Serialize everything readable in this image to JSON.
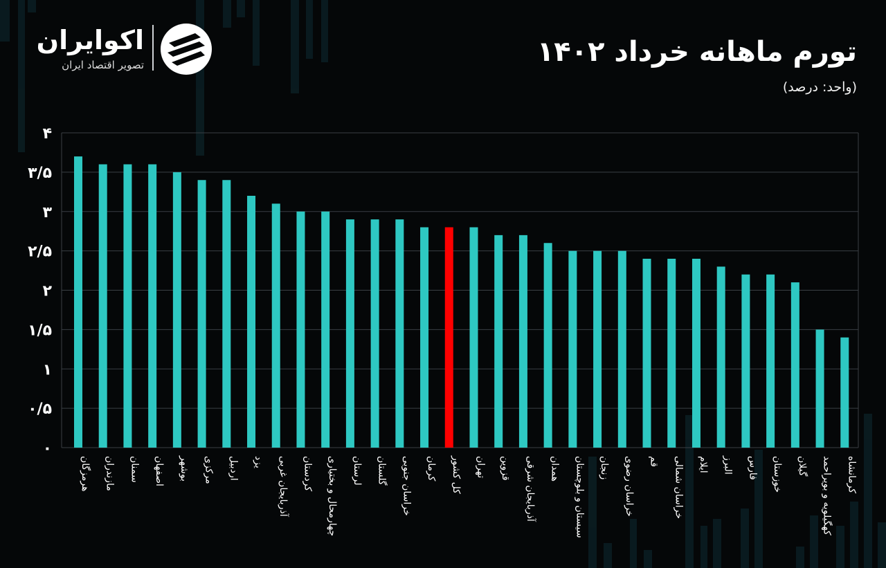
{
  "brand": {
    "name": "اکوایران",
    "tagline": "تصویر اقتصاد ایران"
  },
  "header": {
    "title": "تورم ماهانه خرداد ۱۴۰۲",
    "unit": "(واحد: درصد)"
  },
  "colors": {
    "bar": "#2ec8c2",
    "highlight": "#ff0000",
    "grid": "#3a3f44",
    "text": "#ffffff"
  },
  "chart_data": {
    "type": "bar",
    "title": "تورم ماهانه خرداد ۱۴۰۲",
    "ylabel": "",
    "xlabel": "",
    "ylim": [
      0,
      4
    ],
    "yticks": [
      {
        "value": 0,
        "label": "۰"
      },
      {
        "value": 0.5,
        "label": "۰/۵"
      },
      {
        "value": 1,
        "label": "۱"
      },
      {
        "value": 1.5,
        "label": "۱/۵"
      },
      {
        "value": 2,
        "label": "۲"
      },
      {
        "value": 2.5,
        "label": "۲/۵"
      },
      {
        "value": 3,
        "label": "۳"
      },
      {
        "value": 3.5,
        "label": "۳/۵"
      },
      {
        "value": 4,
        "label": "۴"
      }
    ],
    "grid": true,
    "highlight_category": "کل کشور",
    "categories": [
      "هرمزگان",
      "مازندران",
      "سمنان",
      "اصفهان",
      "بوشهر",
      "مرکزی",
      "اردبیل",
      "یزد",
      "آذربایجان غربی",
      "کردستان",
      "چهارمحال و بختیاری",
      "لرستان",
      "گلستان",
      "خراسان جنوبی",
      "کرمان",
      "کل کشور",
      "تهران",
      "قزوین",
      "آذربایجان شرقی",
      "همدان",
      "سیستان و بلوچستان",
      "زنجان",
      "خراسان رضوی",
      "قم",
      "خراسان شمالی",
      "ایلام",
      "البرز",
      "فارس",
      "خوزستان",
      "گیلان",
      "کهگیلویه و بویراحمد",
      "کرمانشاه"
    ],
    "values": [
      3.7,
      3.6,
      3.6,
      3.6,
      3.5,
      3.4,
      3.4,
      3.2,
      3.1,
      3.0,
      3.0,
      2.9,
      2.9,
      2.9,
      2.8,
      2.8,
      2.8,
      2.7,
      2.7,
      2.6,
      2.5,
      2.5,
      2.5,
      2.4,
      2.4,
      2.4,
      2.3,
      2.2,
      2.2,
      2.1,
      1.5,
      1.4
    ]
  }
}
